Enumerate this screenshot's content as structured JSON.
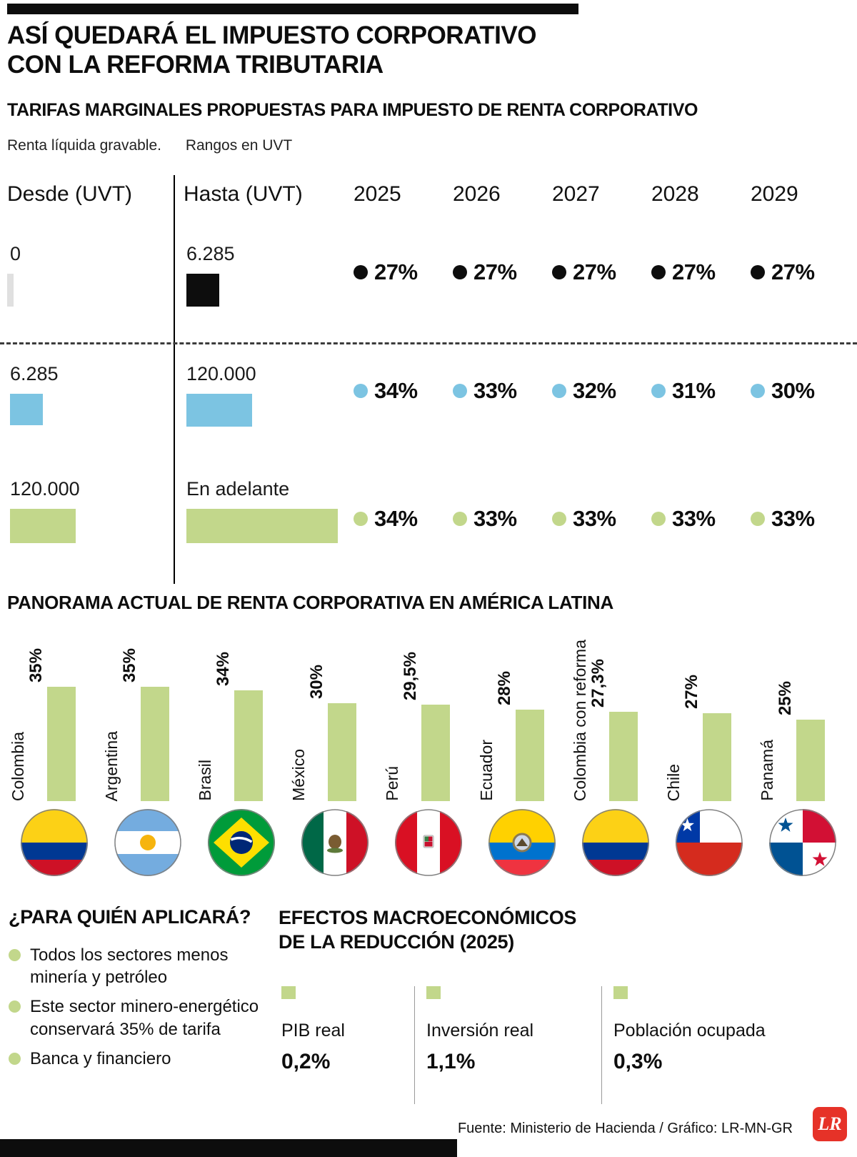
{
  "header": {
    "title_line1": "ASÍ QUEDARÁ EL IMPUESTO CORPORATIVO",
    "title_line2": "CON LA REFORMA TRIBUTARIA",
    "subtitle": "TARIFAS MARGINALES PROPUESTAS PARA IMPUESTO DE RENTA CORPORATIVO",
    "note_left": "Renta líquida gravable.",
    "note_right": "Rangos en UVT"
  },
  "colors": {
    "black": "#0d0d0d",
    "blue": "#7cc4e2",
    "green": "#c2d78b",
    "gray_sliver": "#e0e0e0",
    "lr_red": "#e63228"
  },
  "chart_data": [
    {
      "type": "table",
      "title": "TARIFAS MARGINALES PROPUESTAS PARA IMPUESTO DE RENTA CORPORATIVO",
      "columns": [
        "Desde (UVT)",
        "Hasta (UVT)",
        "2025",
        "2026",
        "2027",
        "2028",
        "2029"
      ],
      "rows": [
        {
          "desde": "0",
          "hasta": "6.285",
          "series_color": "#0d0d0d",
          "rates": [
            "27%",
            "27%",
            "27%",
            "27%",
            "27%"
          ]
        },
        {
          "desde": "6.285",
          "hasta": "120.000",
          "series_color": "#7cc4e2",
          "rates": [
            "34%",
            "33%",
            "32%",
            "31%",
            "30%"
          ]
        },
        {
          "desde": "120.000",
          "hasta": "En adelante",
          "series_color": "#c2d78b",
          "rates": [
            "34%",
            "33%",
            "33%",
            "33%",
            "33%"
          ]
        }
      ]
    },
    {
      "type": "bar",
      "title": "PANORAMA ACTUAL DE RENTA CORPORATIVA EN AMÉRICA LATINA",
      "categories": [
        "Colombia",
        "Argentina",
        "Brasil",
        "México",
        "Perú",
        "Ecuador",
        "Colombia con reforma",
        "Chile",
        "Panamá"
      ],
      "values": [
        35,
        35,
        34,
        30,
        29.5,
        28,
        27.3,
        27,
        25
      ],
      "value_labels": [
        "35%",
        "35%",
        "34%",
        "30%",
        "29,5%",
        "28%",
        "27,3%",
        "27%",
        "25%"
      ],
      "flags": [
        "colombia",
        "argentina",
        "brasil",
        "mexico",
        "peru",
        "ecuador",
        "colombia",
        "chile",
        "panama"
      ],
      "bar_color": "#c2d78b",
      "ylim": [
        0,
        35
      ],
      "grid": false,
      "legend": false
    }
  ],
  "who_applies": {
    "title": "¿PARA QUIÉN APLICARÁ?",
    "items": [
      "Todos los sectores menos minería y petróleo",
      "Este sector minero-energético conservará 35% de tarifa",
      "Banca y financiero"
    ]
  },
  "macro_effects": {
    "title_line1": "EFECTOS MACROECONÓMICOS",
    "title_line2": "DE LA REDUCCIÓN (2025)",
    "items": [
      {
        "label": "PIB real",
        "value": "0,2%"
      },
      {
        "label": "Inversión real",
        "value": "1,1%"
      },
      {
        "label": "Población ocupada",
        "value": "0,3%"
      }
    ]
  },
  "footer": {
    "source": "Fuente: Ministerio de Hacienda / Gráfico: LR-MN-GR",
    "logo": "LR"
  }
}
